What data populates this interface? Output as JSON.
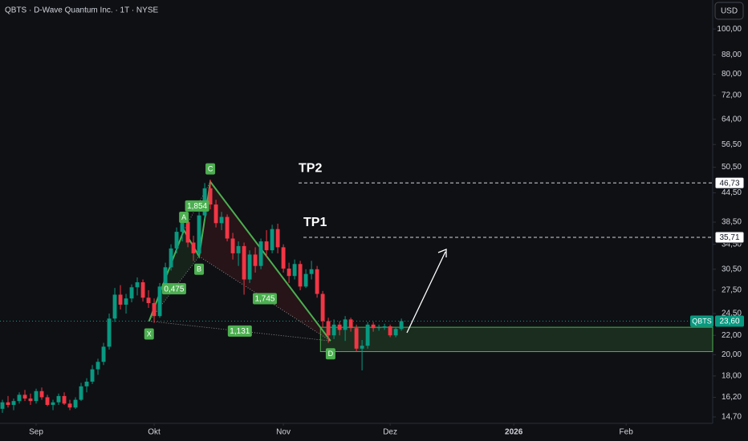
{
  "chart_data": {
    "type": "candlestick",
    "title": "QBTS · D-Wave Quantum Inc. · 1T · NYSE",
    "currency": "USD",
    "log_scale": true,
    "up_color": "#089981",
    "down_color": "#f23645",
    "xlim": [
      -0.43,
      126.4
    ],
    "xticks": [
      {
        "value": 6,
        "label": "Sep"
      },
      {
        "value": 27,
        "label": "Okt"
      },
      {
        "value": 50,
        "label": "Nov"
      },
      {
        "value": 69,
        "label": "Dez"
      },
      {
        "value": 91,
        "label": "2026"
      },
      {
        "value": 111,
        "label": "Feb"
      }
    ],
    "ylim": [
      14.24,
      115.4
    ],
    "yticks": [
      {
        "value": 100,
        "label": "100,00"
      },
      {
        "value": 88,
        "label": "88,00"
      },
      {
        "value": 80,
        "label": "80,00"
      },
      {
        "value": 72,
        "label": "72,00"
      },
      {
        "value": 64,
        "label": "64,00"
      },
      {
        "value": 56.5,
        "label": "56,50"
      },
      {
        "value": 50.5,
        "label": "50,50"
      },
      {
        "value": 44.5,
        "label": "44,50"
      },
      {
        "value": 38.5,
        "label": "38,50"
      },
      {
        "value": 34.5,
        "label": "34,50"
      },
      {
        "value": 30.5,
        "label": "30,50"
      },
      {
        "value": 27.5,
        "label": "27,50"
      },
      {
        "value": 24.5,
        "label": "24,50"
      },
      {
        "value": 22,
        "label": "22,00"
      },
      {
        "value": 20,
        "label": "20,00"
      },
      {
        "value": 18,
        "label": "18,00"
      },
      {
        "value": 16.2,
        "label": "16,20"
      },
      {
        "value": 14.7,
        "label": "14,70"
      }
    ],
    "open": [
      15.3,
      15.8,
      15.6,
      15.9,
      16.4,
      16.1,
      15.9,
      16.7,
      16.2,
      15.6,
      15.8,
      16.3,
      15.7,
      15.4,
      16.0,
      17.1,
      17.5,
      18.6,
      19.3,
      20.8,
      23.9,
      26.9,
      25.6,
      26.4,
      27.9,
      28.6,
      26.5,
      25.8,
      24.2,
      28.0,
      30.8,
      33.8,
      36.7,
      38.5,
      34.8,
      33.0,
      39.8,
      45.5,
      42.0,
      38.3,
      39.5,
      35.5,
      33.0,
      34.2,
      29.0,
      32.8,
      31.0,
      35.0,
      33.5,
      37.2,
      34.0,
      30.6,
      29.5,
      31.3,
      28.0,
      29.8,
      30.5,
      27.0,
      23.6,
      22.0,
      23.2,
      22.6,
      23.8,
      22.8,
      20.6,
      20.9,
      23.2,
      22.8,
      22.9,
      23.0,
      22.0,
      22.7
    ],
    "high": [
      16.0,
      16.3,
      16.1,
      16.6,
      16.8,
      16.5,
      16.9,
      17.0,
      16.4,
      16.0,
      16.5,
      16.6,
      16.0,
      16.2,
      17.4,
      17.8,
      19.0,
      19.6,
      21.2,
      24.5,
      27.8,
      28.2,
      27.0,
      28.3,
      29.3,
      29.0,
      27.5,
      26.4,
      28.5,
      31.5,
      34.5,
      37.5,
      39.8,
      39.5,
      36.0,
      40.5,
      46.7,
      47.5,
      43.0,
      40.5,
      40.0,
      36.5,
      35.0,
      34.8,
      33.5,
      34.0,
      35.5,
      37.0,
      38.0,
      38.2,
      34.5,
      31.5,
      32.0,
      31.8,
      30.5,
      31.8,
      31.0,
      27.4,
      24.0,
      23.8,
      23.6,
      24.2,
      24.0,
      23.2,
      21.5,
      23.5,
      23.5,
      23.2,
      23.3,
      23.2,
      22.9,
      23.9
    ],
    "low": [
      15.0,
      15.4,
      15.2,
      15.7,
      15.9,
      15.6,
      15.7,
      16.0,
      15.5,
      15.2,
      15.6,
      15.6,
      15.2,
      15.3,
      15.9,
      16.6,
      17.3,
      18.1,
      19.0,
      20.5,
      23.5,
      25.0,
      24.5,
      25.9,
      26.8,
      26.0,
      25.2,
      23.4,
      24.0,
      27.6,
      30.3,
      33.0,
      35.0,
      34.0,
      31.8,
      32.5,
      39.0,
      41.0,
      37.5,
      37.0,
      35.0,
      32.0,
      31.0,
      26.9,
      28.5,
      30.0,
      30.5,
      32.5,
      33.0,
      33.0,
      30.0,
      28.5,
      29.0,
      27.5,
      27.8,
      29.0,
      26.5,
      22.9,
      21.2,
      21.6,
      22.0,
      21.4,
      22.4,
      20.3,
      18.5,
      20.6,
      22.4,
      22.5,
      22.6,
      21.8,
      21.8,
      22.5
    ],
    "close": [
      15.8,
      15.6,
      15.9,
      16.4,
      16.1,
      15.9,
      16.7,
      16.2,
      15.6,
      15.8,
      16.3,
      15.7,
      15.4,
      16.0,
      17.1,
      17.5,
      18.6,
      19.3,
      20.8,
      23.9,
      26.9,
      25.6,
      26.4,
      27.9,
      28.6,
      26.5,
      25.8,
      24.2,
      28.0,
      30.8,
      33.8,
      36.7,
      38.5,
      34.8,
      33.0,
      39.8,
      45.5,
      42.0,
      38.3,
      39.5,
      35.5,
      33.0,
      34.2,
      29.0,
      32.8,
      31.0,
      35.0,
      33.5,
      37.2,
      34.0,
      30.6,
      29.5,
      31.3,
      28.0,
      29.8,
      30.5,
      27.0,
      23.6,
      22.0,
      23.2,
      22.6,
      23.8,
      22.8,
      20.6,
      20.9,
      23.2,
      22.8,
      22.9,
      23.0,
      22.0,
      22.7,
      23.6
    ],
    "pattern": {
      "color": "#4caf50",
      "points": [
        {
          "label": "X",
          "x": 26.1,
          "value": 23.6
        },
        {
          "label": "A",
          "x": 32.3,
          "value": 37.0
        },
        {
          "label": "B",
          "x": 35.0,
          "value": 32.5
        },
        {
          "label": "C",
          "x": 37.0,
          "value": 47.0
        },
        {
          "label": "D",
          "x": 58.4,
          "value": 21.4
        }
      ],
      "ratios": [
        "1,854",
        "0,475",
        "1,745",
        "1,131"
      ]
    },
    "zone": {
      "low": 20.3,
      "high": 22.9
    },
    "levels": [
      {
        "name": "TP2",
        "value": 46.73,
        "label": "46,73"
      },
      {
        "name": "TP1",
        "value": 35.71,
        "label": "35,71"
      }
    ],
    "last_price": {
      "symbol": "QBTS",
      "value": 23.6,
      "label": "23,60"
    }
  }
}
